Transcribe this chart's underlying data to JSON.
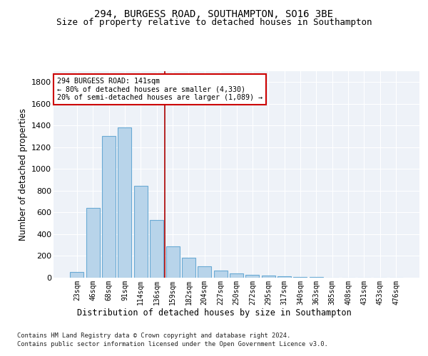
{
  "title1": "294, BURGESS ROAD, SOUTHAMPTON, SO16 3BE",
  "title2": "Size of property relative to detached houses in Southampton",
  "xlabel": "Distribution of detached houses by size in Southampton",
  "ylabel": "Number of detached properties",
  "categories": [
    "23sqm",
    "46sqm",
    "68sqm",
    "91sqm",
    "114sqm",
    "136sqm",
    "159sqm",
    "182sqm",
    "204sqm",
    "227sqm",
    "250sqm",
    "272sqm",
    "295sqm",
    "317sqm",
    "340sqm",
    "363sqm",
    "385sqm",
    "408sqm",
    "431sqm",
    "453sqm",
    "476sqm"
  ],
  "values": [
    50,
    645,
    1307,
    1383,
    848,
    530,
    290,
    183,
    108,
    63,
    38,
    28,
    18,
    12,
    8,
    5,
    3,
    2,
    1,
    1,
    0
  ],
  "bar_color": "#b8d4ea",
  "bar_edge_color": "#6aaad4",
  "vline_pos": 5.5,
  "vline_color": "#aa0000",
  "ylim": [
    0,
    1900
  ],
  "yticks": [
    0,
    200,
    400,
    600,
    800,
    1000,
    1200,
    1400,
    1600,
    1800
  ],
  "plot_bg_color": "#eef2f8",
  "grid_color": "#ffffff",
  "annotation_line1": "294 BURGESS ROAD: 141sqm",
  "annotation_line2": "← 80% of detached houses are smaller (4,330)",
  "annotation_line3": "20% of semi-detached houses are larger (1,089) →",
  "footnote1": "Contains HM Land Registry data © Crown copyright and database right 2024.",
  "footnote2": "Contains public sector information licensed under the Open Government Licence v3.0."
}
